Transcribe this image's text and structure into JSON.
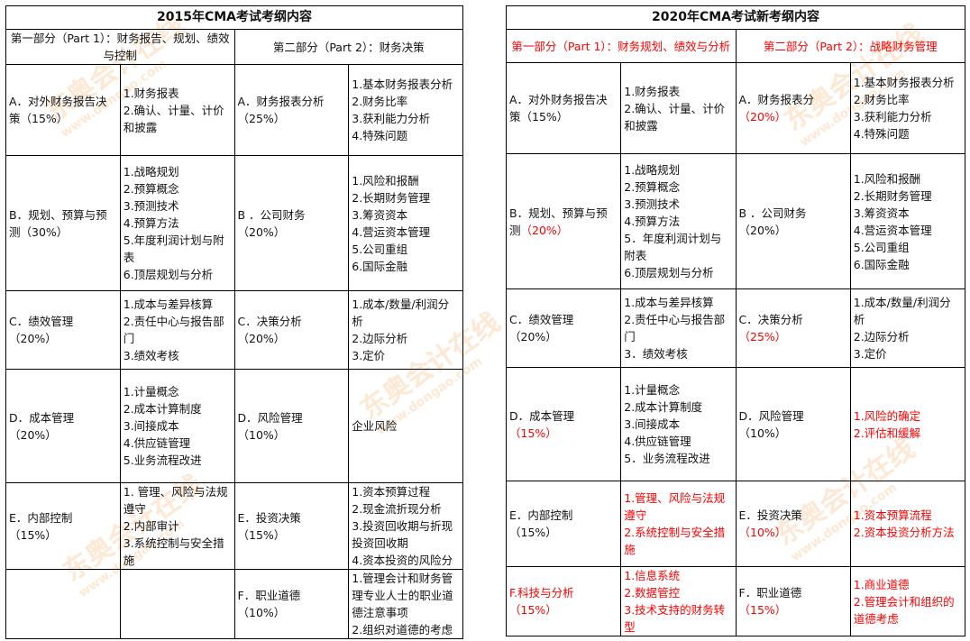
{
  "watermark": {
    "brand": "东奥会计在线",
    "url": "www.dongao.com",
    "color": "#f5963c"
  },
  "tables": [
    {
      "title": "2015年CMA考试考纲内容",
      "parts": [
        {
          "label": "第一部分（Part 1）：财务报告、规划、绩效与控制",
          "red": false
        },
        {
          "label": "第二部分（Part 2）：财务决策",
          "red": false
        }
      ],
      "rows": [
        [
          [
            [
              "A．对外财务报告决"
            ],
            [
              "策（15%）"
            ]
          ],
          [
            [
              "1.财务报表"
            ],
            [
              "2.确认、计量、计价"
            ],
            [
              "和披露"
            ]
          ],
          [
            [
              "A．财务报表分析"
            ],
            [
              "（25%）"
            ]
          ],
          [
            [
              "1.基本财务报表分析"
            ],
            [
              "2.财务比率"
            ],
            [
              "3.获利能力分析"
            ],
            [
              "4.特殊问题"
            ]
          ]
        ],
        [
          [
            [
              "B．规划、预算与预"
            ],
            [
              "测（30%）"
            ]
          ],
          [
            [
              "1.战略规划"
            ],
            [
              "2.预算概念"
            ],
            [
              "3.预测技术"
            ],
            [
              "4.预算方法"
            ],
            [
              "5.年度利润计划与附"
            ],
            [
              "表"
            ],
            [
              "6.顶层规划与分析"
            ]
          ],
          [
            [
              "B ．公司财务"
            ],
            [
              "（20%）"
            ]
          ],
          [
            [
              "1.风险和报酬"
            ],
            [
              "2.长期财务管理"
            ],
            [
              "3.筹资资本"
            ],
            [
              "4.营运资本管理"
            ],
            [
              "5.公司重组"
            ],
            [
              "6.国际金融"
            ]
          ]
        ],
        [
          [
            [
              "C．绩效管理"
            ],
            [
              "（20%）"
            ]
          ],
          [
            [
              "1.成本与差异核算"
            ],
            [
              "2.责任中心与报告部"
            ],
            [
              "门"
            ],
            [
              "3.绩效考核"
            ]
          ],
          [
            [
              "C．决策分析"
            ],
            [
              "（20%）"
            ]
          ],
          [
            [
              "1.成本/数量/利润分"
            ],
            [
              "析"
            ],
            [
              "2.边际分析"
            ],
            [
              "3.定价"
            ]
          ]
        ],
        [
          [
            [
              "D．成本管理"
            ],
            [
              "（20%）"
            ]
          ],
          [
            [
              "1.计量概念"
            ],
            [
              "2.成本计算制度"
            ],
            [
              "3.间接成本"
            ],
            [
              "4.供应链管理"
            ],
            [
              "5.业务流程改进"
            ]
          ],
          [
            [
              "D．风险管理"
            ],
            [
              "（10%）"
            ]
          ],
          [
            [
              "企业风险"
            ]
          ]
        ],
        [
          [
            [
              "E．内部控制"
            ],
            [
              "（15%）"
            ]
          ],
          [
            [
              "1. 管理、风险与法规"
            ],
            [
              "遵守"
            ],
            [
              "2.内部审计"
            ],
            [
              "3.系统控制与安全措"
            ],
            [
              "施"
            ]
          ],
          [
            [
              "E．投资决策"
            ],
            [
              "（15%）"
            ]
          ],
          [
            [
              "1.资本预算过程"
            ],
            [
              "2.现金流折现分析"
            ],
            [
              "3.投资回收期与折现"
            ],
            [
              "投资回收期"
            ],
            [
              "4.资本投资的风险分"
            ]
          ]
        ],
        [
          [],
          [],
          [
            [
              "F．职业道德"
            ],
            [
              "（10%）"
            ]
          ],
          [
            [
              "1.管理会计和财务管"
            ],
            [
              "理专业人士的职业道"
            ],
            [
              "德注意事项"
            ],
            [
              "2.组织对道德的考虑"
            ]
          ]
        ]
      ]
    },
    {
      "title": "2020年CMA考试新考纲内容",
      "parts": [
        {
          "label": "第一部分（Part 1）：财务规划、绩效与分析",
          "red": true
        },
        {
          "label": "第二部分（Part 2）：战略财务管理",
          "red": true
        }
      ],
      "rows": [
        [
          [
            [
              "A．对外财务报告决"
            ],
            [
              "策（15%）"
            ]
          ],
          [
            [
              "1.财务报表"
            ],
            [
              "2.确认、计量、计价"
            ],
            [
              "和披露"
            ]
          ],
          [
            [
              "A．财务报表分"
            ],
            [
              "（20%）",
              "r"
            ]
          ],
          [
            [
              "1.基本财务报表分析"
            ],
            [
              "2.财务比率"
            ],
            [
              "3.获利能力分析"
            ],
            [
              "4.特殊问题"
            ]
          ]
        ],
        [
          [
            [
              "B．规划、预算与预"
            ],
            [
              "测",
              "",
              "（20%）",
              "r"
            ]
          ],
          [
            [
              "1.战略规划"
            ],
            [
              "2.预算概念"
            ],
            [
              "3.预测技术"
            ],
            [
              "4.预算方法"
            ],
            [
              "5．年度利润计划与"
            ],
            [
              "附表"
            ],
            [
              "6.顶层规划与分析"
            ]
          ],
          [
            [
              "B ．公司财务"
            ],
            [
              "（20%）"
            ]
          ],
          [
            [
              "1.风险和报酬"
            ],
            [
              "2.长期财务管理"
            ],
            [
              "3.筹资资本"
            ],
            [
              "4.营运资本管理"
            ],
            [
              "5.公司重组"
            ],
            [
              "6.国际金融"
            ]
          ]
        ],
        [
          [
            [
              "C．绩效管理"
            ],
            [
              "（20%）"
            ]
          ],
          [
            [
              "1.成本与差异核算"
            ],
            [
              "2.责任中心与报告部"
            ],
            [
              "门"
            ],
            [
              "3．绩效考核"
            ]
          ],
          [
            [
              "C．决策分析"
            ],
            [
              "（25%）",
              "r"
            ]
          ],
          [
            [
              "1.成本/数量/利润分"
            ],
            [
              "析"
            ],
            [
              "2.边际分析"
            ],
            [
              "3.定价"
            ]
          ]
        ],
        [
          [
            [
              "D．成本管理"
            ],
            [
              "（15%）",
              "r"
            ]
          ],
          [
            [
              "1.计量概念"
            ],
            [
              "2.成本计算制度"
            ],
            [
              "3.间接成本"
            ],
            [
              "4.供应链管理"
            ],
            [
              "5．业务流程改进"
            ]
          ],
          [
            [
              "D．风险管理"
            ],
            [
              "（10%）"
            ]
          ],
          [
            [
              "1.风险的确定",
              "r"
            ],
            [
              "2.评估和缓解",
              "r"
            ]
          ]
        ],
        [
          [
            [
              "E．内部控制"
            ],
            [
              "（15%）"
            ]
          ],
          [
            [
              "1.管理、风险与法规",
              "r"
            ],
            [
              "遵守",
              "r"
            ],
            [
              "2.系统控制与安全措",
              "r"
            ],
            [
              "施",
              "r"
            ]
          ],
          [
            [
              "E．投资决策"
            ],
            [
              "（10%）",
              "r"
            ]
          ],
          [
            [
              "1.资本预算流程",
              "r"
            ],
            [
              "2.资本投资分析方法",
              "r"
            ]
          ]
        ],
        [
          [
            [
              "F.科技与分析",
              "r"
            ],
            [
              "（15%）",
              "r"
            ]
          ],
          [
            [
              "1.信息系统",
              "r"
            ],
            [
              "2.数据管控",
              "r"
            ],
            [
              "3.技术支持的财务转",
              "r"
            ],
            [
              "型",
              "r"
            ]
          ],
          [
            [
              "F．职业道德"
            ],
            [
              "（15%）",
              "r"
            ]
          ],
          [
            [
              "1.商业道德",
              "r"
            ],
            [
              "2.管理会计和组织的",
              "r"
            ],
            [
              "道德考虑",
              "r"
            ]
          ]
        ]
      ]
    }
  ]
}
